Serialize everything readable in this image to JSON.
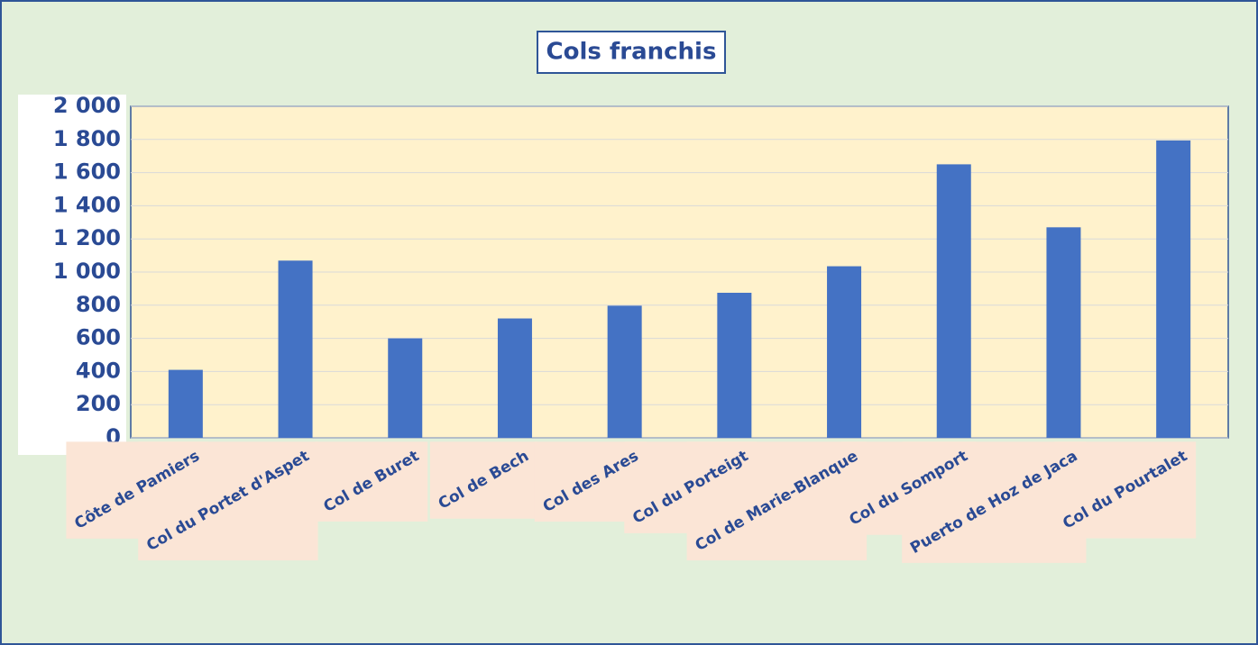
{
  "chart_data": {
    "type": "bar",
    "title": "Cols franchis",
    "categories": [
      "Côte de Pamiers",
      "Col du Portet d'Aspet",
      "Col de Buret",
      "Col de Bech",
      "Col des Ares",
      "Col du Porteigt",
      "Col de Marie-Blanque",
      "Col du Somport",
      "Puerto de Hoz de Jaca",
      "Col du Pourtalet"
    ],
    "values": [
      410,
      1069,
      600,
      720,
      797,
      875,
      1035,
      1650,
      1270,
      1794
    ],
    "color": "#4472c4",
    "ylim": [
      0,
      2000
    ],
    "yticks": [
      0,
      200,
      400,
      600,
      800,
      {
        "value": 1000,
        "label": "1 000"
      },
      {
        "value": 1200,
        "label": "1 200"
      },
      {
        "value": 1400,
        "label": "1 400"
      },
      {
        "value": 1600,
        "label": "1 600"
      },
      {
        "value": 1800,
        "label": "1 800"
      },
      {
        "value": 2000,
        "label": "2 000"
      }
    ],
    "grid": true
  }
}
